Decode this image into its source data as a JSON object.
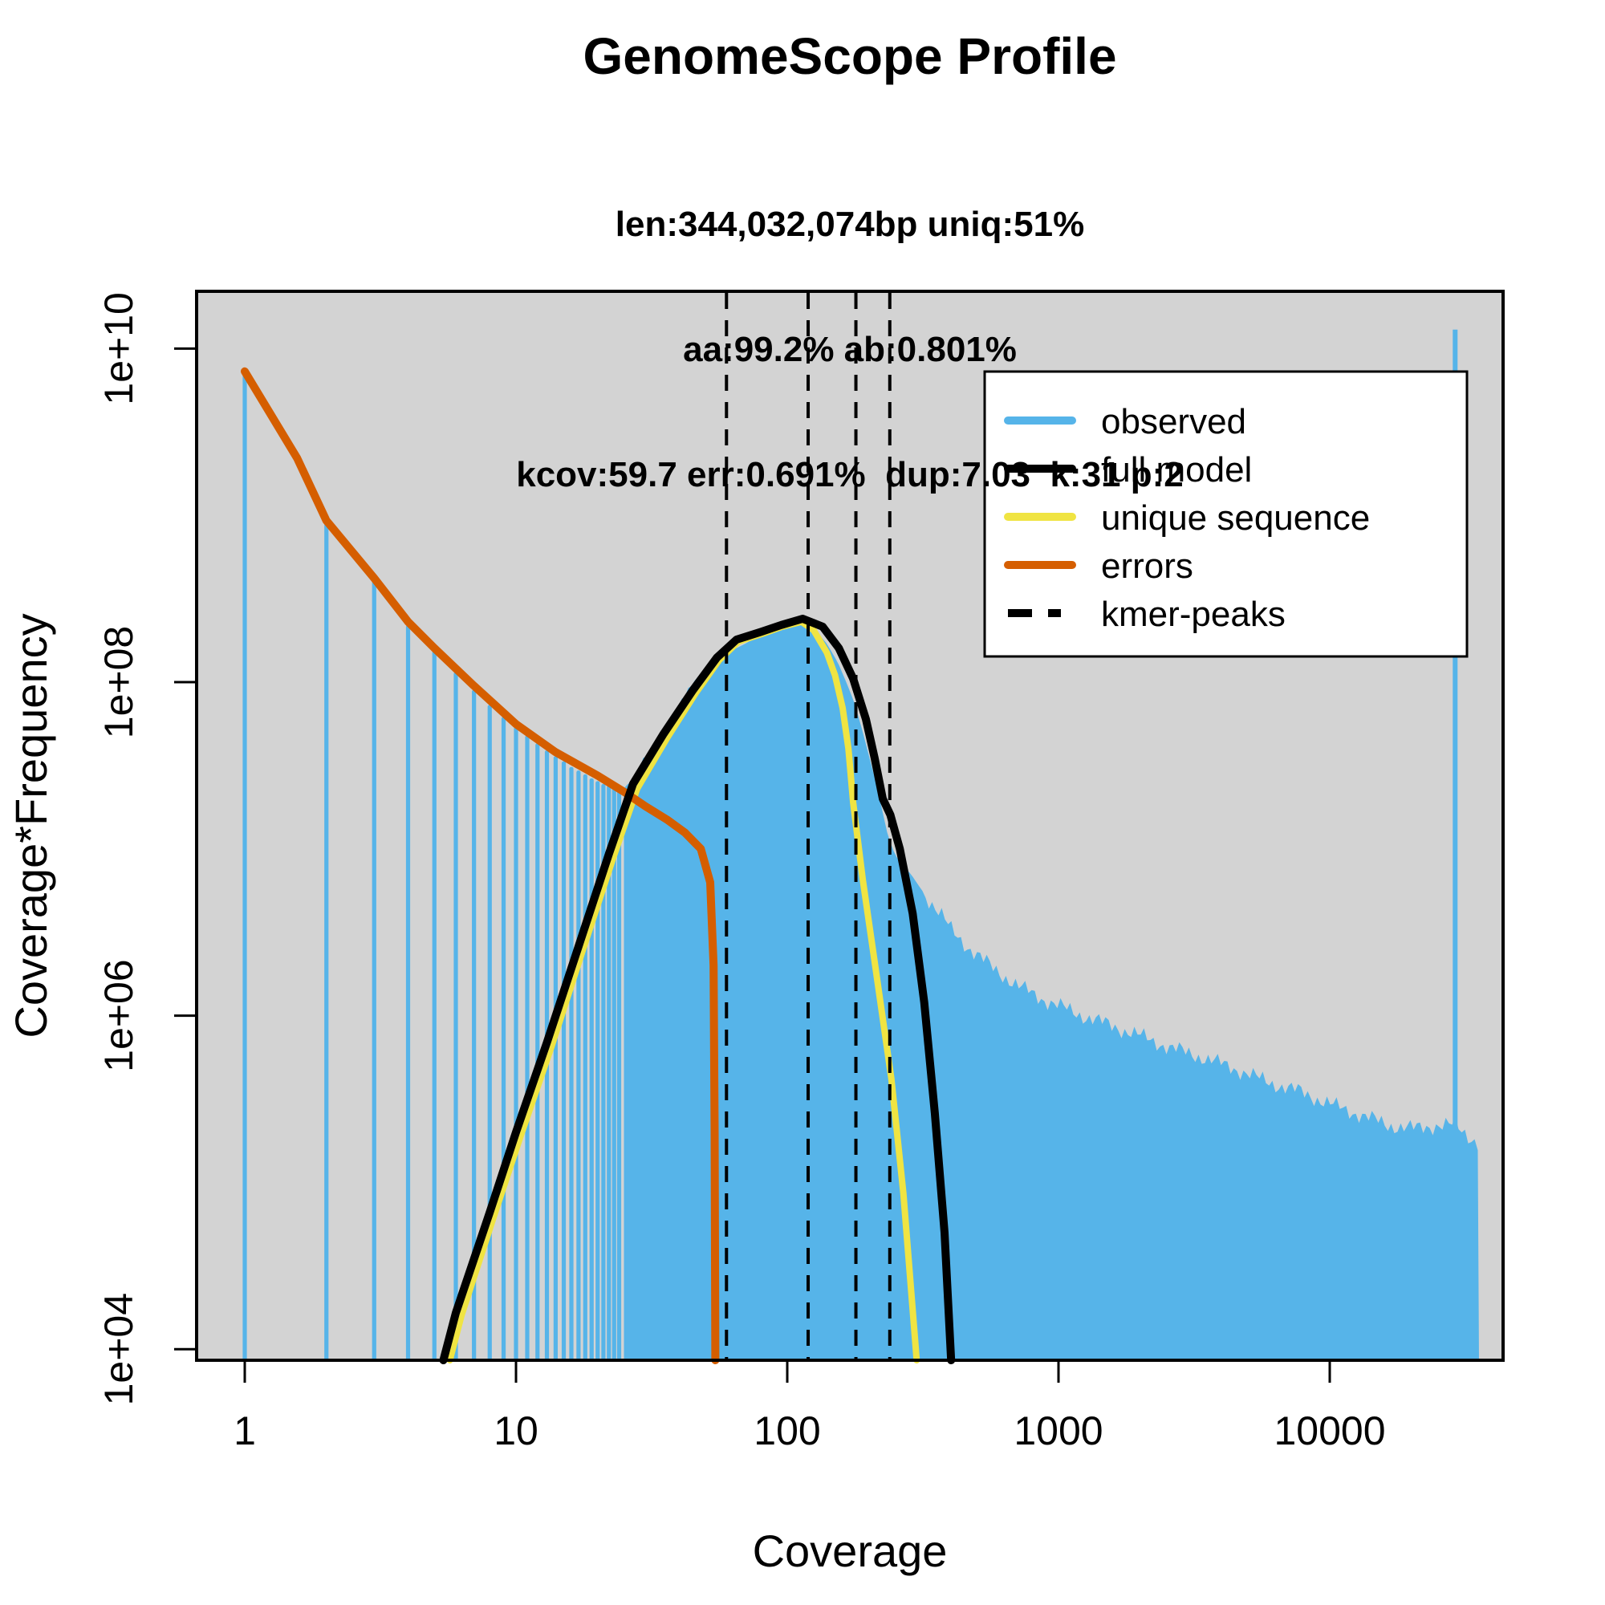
{
  "header": {
    "title": "GenomeScope Profile",
    "subtitle_line1": "len:344,032,074bp uniq:51%",
    "subtitle_line2": "aa:99.2% ab:0.801%",
    "subtitle_line3": "kcov:59.7 err:0.691%  dup:7.03  k:31 p:2"
  },
  "legend": {
    "items": [
      {
        "key": "observed",
        "label": "observed"
      },
      {
        "key": "full_model",
        "label": "full model"
      },
      {
        "key": "unique_sequence",
        "label": "unique sequence"
      },
      {
        "key": "errors",
        "label": "errors"
      },
      {
        "key": "kmer_peaks",
        "label": "kmer-peaks"
      }
    ]
  },
  "chart_data": {
    "type": "area",
    "title": "GenomeScope Profile",
    "xlabel": "Coverage",
    "ylabel": "Coverage*Frequency",
    "x_scale": "log10",
    "y_scale": "log10",
    "xlim": [
      0.66,
      43500
    ],
    "ylim": [
      6600,
      24000000000
    ],
    "grid": false,
    "legend_position": "top-right",
    "colors": {
      "observed": "#56B4E9",
      "full_model": "#000000",
      "unique_sequence": "#F0E442",
      "errors": "#D55E00",
      "kmer_peaks": "#000000",
      "plot_bg": "#D3D3D3",
      "frame": "#000000"
    },
    "axes": {
      "x_ticks": [
        {
          "v": 1,
          "label": "1"
        },
        {
          "v": 10,
          "label": "10"
        },
        {
          "v": 100,
          "label": "100"
        },
        {
          "v": 1000,
          "label": "1000"
        },
        {
          "v": 10000,
          "label": "10000"
        }
      ],
      "y_ticks": [
        {
          "v": 10000,
          "label": "1e+04"
        },
        {
          "v": 1000000,
          "label": "1e+06"
        },
        {
          "v": 100000000,
          "label": "1e+08"
        },
        {
          "v": 10000000000,
          "label": "1e+10"
        }
      ]
    },
    "kmer_peaks": [
      59.7,
      119.4,
      179.1,
      238.8
    ],
    "observed_spikes": [
      [
        1,
        7200000000.0
      ],
      [
        2,
        900000000.0
      ],
      [
        3,
        410000000.0
      ],
      [
        4,
        220000000.0
      ],
      [
        5,
        155000000.0
      ],
      [
        6,
        115000000.0
      ],
      [
        7,
        90000000.0
      ],
      [
        8,
        73000000.0
      ],
      [
        9,
        62000000.0
      ],
      [
        10,
        54000000.0
      ],
      [
        11,
        48000000.0
      ],
      [
        12,
        43000000.0
      ],
      [
        13,
        39000000.0
      ],
      [
        14,
        36000000.0
      ],
      [
        15,
        33500000.0
      ],
      [
        16,
        31000000.0
      ],
      [
        17,
        29500000.0
      ],
      [
        18,
        28000000.0
      ],
      [
        19,
        26500000.0
      ],
      [
        20,
        25500000.0
      ],
      [
        21,
        24500000.0
      ],
      [
        22,
        24000000.0
      ],
      [
        23,
        23500000.0
      ],
      [
        24,
        23000000.0
      ]
    ],
    "observed_envelope": [
      [
        25,
        23000000.0
      ],
      [
        27,
        26000000.0
      ],
      [
        29,
        33000000.0
      ],
      [
        36,
        55000000.0
      ],
      [
        44,
        95000000.0
      ],
      [
        52,
        130000000.0
      ],
      [
        60,
        150000000.0
      ],
      [
        70,
        170000000.0
      ],
      [
        87,
        210000000.0
      ],
      [
        100,
        220000000.0
      ],
      [
        113,
        220000000.0
      ],
      [
        125,
        210000000.0
      ],
      [
        140,
        170000000.0
      ],
      [
        154,
        130000000.0
      ],
      [
        165,
        100000000.0
      ],
      [
        177,
        75000000.0
      ],
      [
        190,
        50000000.0
      ],
      [
        203,
        33000000.0
      ],
      [
        215,
        23000000.0
      ],
      [
        224,
        17000000.0
      ],
      [
        235,
        12000000.0
      ],
      [
        249,
        9300000.0
      ],
      [
        265,
        8000000.0
      ],
      [
        285,
        7100000.0
      ],
      [
        310,
        5800000.0
      ],
      [
        338,
        4800000.0
      ],
      [
        370,
        4000000.0
      ],
      [
        400,
        3300000.0
      ],
      [
        473,
        2500000.0
      ],
      [
        580,
        1900000.0
      ],
      [
        712,
        1500000.0
      ],
      [
        875,
        1260000.0
      ],
      [
        1150,
        1040000.0
      ],
      [
        1510,
        890000.0
      ],
      [
        1980,
        760000.0
      ],
      [
        2600,
        640000.0
      ],
      [
        3420,
        560000.0
      ],
      [
        4500,
        480000.0
      ],
      [
        5900,
        400000.0
      ],
      [
        7800,
        350000.0
      ],
      [
        10260,
        290000.0
      ],
      [
        13400,
        250000.0
      ],
      [
        16500,
        220000.0
      ],
      [
        20200,
        210000.0
      ],
      [
        24800,
        220000.0
      ],
      [
        29000,
        220000.0
      ],
      [
        32600,
        190000.0
      ],
      [
        35500,
        170000.0
      ]
    ],
    "last_bin_spike": {
      "coverage": 29000,
      "value": 13000000000.0
    },
    "series": [
      {
        "name": "full model",
        "points": [
          [
            5.4,
            6600.0
          ],
          [
            6,
            16500.0
          ],
          [
            8,
            66000.0
          ],
          [
            10,
            200000.0
          ],
          [
            13,
            690000.0
          ],
          [
            17,
            2600000.0
          ],
          [
            22,
            9300000.0
          ],
          [
            27,
            24500000.0
          ],
          [
            35,
            49000000.0
          ],
          [
            45,
            90000000.0
          ],
          [
            55,
            140000000.0
          ],
          [
            65,
            180000000.0
          ],
          [
            80,
            200000000.0
          ],
          [
            95,
            220000000.0
          ],
          [
            114,
            240000000.0
          ],
          [
            135,
            215000000.0
          ],
          [
            155,
            160000000.0
          ],
          [
            175,
            105000000.0
          ],
          [
            195,
            60000000.0
          ],
          [
            210,
            35000000.0
          ],
          [
            225,
            20000000.0
          ],
          [
            240,
            16000000.0
          ],
          [
            260,
            10000000.0
          ],
          [
            290,
            4100000.0
          ],
          [
            320,
            1200000.0
          ],
          [
            350,
            260000.0
          ],
          [
            380,
            50000.0
          ],
          [
            402,
            6600.0
          ]
        ]
      },
      {
        "name": "unique sequence",
        "points": [
          [
            5.7,
            6600.0
          ],
          [
            6.3,
            16000.0
          ],
          [
            8.3,
            63000.0
          ],
          [
            10.4,
            190000.0
          ],
          [
            13.5,
            650000.0
          ],
          [
            17.6,
            2450000.0
          ],
          [
            22.8,
            8800000.0
          ],
          [
            28,
            23000000.0
          ],
          [
            36,
            46000000.0
          ],
          [
            46,
            86000000.0
          ],
          [
            56,
            135000000.0
          ],
          [
            66,
            175000000.0
          ],
          [
            81,
            195000000.0
          ],
          [
            96,
            215000000.0
          ],
          [
            113,
            230000000.0
          ],
          [
            125,
            205000000.0
          ],
          [
            140,
            150000000.0
          ],
          [
            150,
            110000000.0
          ],
          [
            160,
            70000000.0
          ],
          [
            168,
            40000000.0
          ],
          [
            175,
            19000000.0
          ],
          [
            190,
            6500000.0
          ],
          [
            210,
            2100000.0
          ],
          [
            242,
            420000.0
          ],
          [
            268,
            86000.0
          ],
          [
            300,
            6600.0
          ]
        ]
      },
      {
        "name": "errors",
        "points": [
          [
            1,
            7300000000.0
          ],
          [
            1.56,
            2200000000.0
          ],
          [
            2,
            930000000.0
          ],
          [
            3,
            420000000.0
          ],
          [
            4,
            230000000.0
          ],
          [
            5,
            160000000.0
          ],
          [
            7,
            95000000.0
          ],
          [
            10,
            56000000.0
          ],
          [
            14,
            38000000.0
          ],
          [
            20,
            27500000.0
          ],
          [
            25,
            22000000.0
          ],
          [
            30,
            18000000.0
          ],
          [
            36,
            15000000.0
          ],
          [
            42,
            12500000.0
          ],
          [
            48,
            10000000.0
          ],
          [
            52,
            6300000.0
          ],
          [
            53.5,
            2000000.0
          ],
          [
            54,
            200000.0
          ],
          [
            54.3,
            6600.0
          ]
        ]
      }
    ]
  }
}
